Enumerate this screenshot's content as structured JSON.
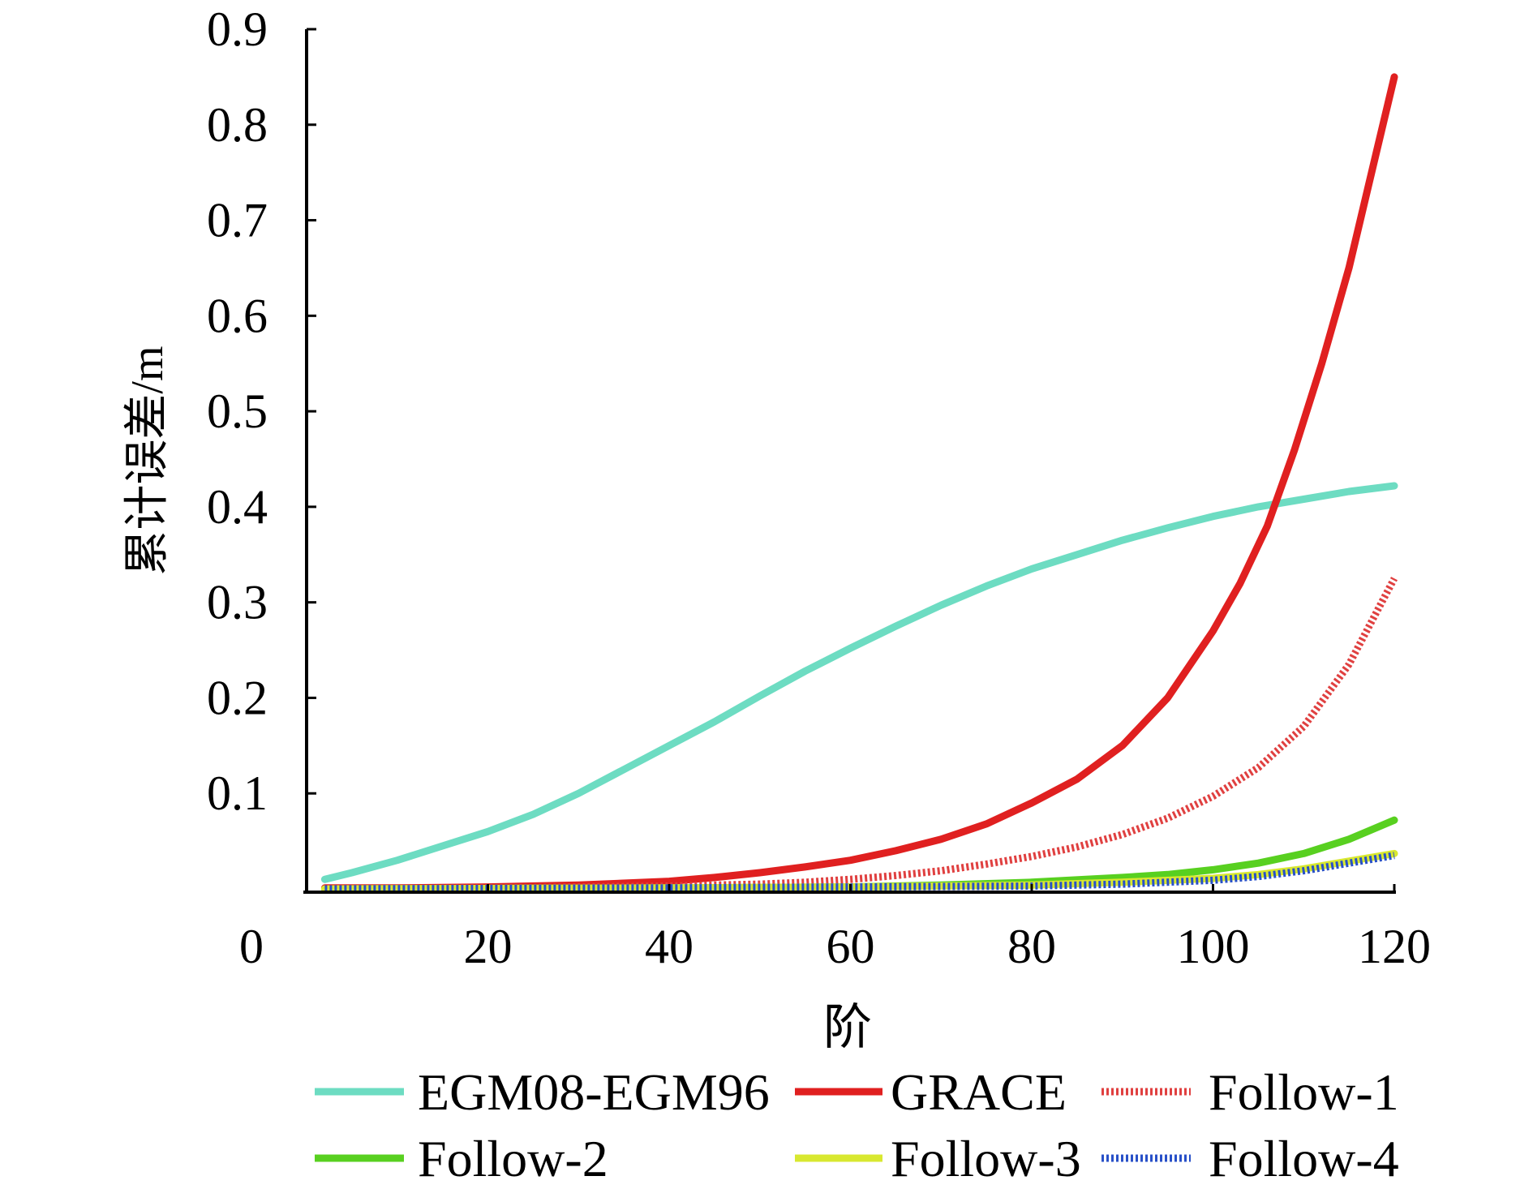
{
  "chart_data": {
    "type": "line",
    "title": "",
    "xlabel": "阶",
    "ylabel": "累计误差/m",
    "xlim": [
      0,
      120
    ],
    "ylim": [
      0,
      0.9
    ],
    "x_ticks": [
      "0",
      "20",
      "40",
      "60",
      "80",
      "100",
      "120"
    ],
    "y_ticks": [
      "0.1",
      "0.2",
      "0.3",
      "0.4",
      "0.5",
      "0.6",
      "0.7",
      "0.8",
      "0.9"
    ],
    "x_tick_values": [
      0,
      20,
      40,
      60,
      80,
      100,
      120
    ],
    "y_tick_values": [
      0.1,
      0.2,
      0.3,
      0.4,
      0.5,
      0.6,
      0.7,
      0.8,
      0.9
    ],
    "grid": false,
    "legend_position": "bottom",
    "series": [
      {
        "name": "EGM08-EGM96",
        "color": "#6ddcc2",
        "dash": "solid",
        "x": [
          2,
          5,
          10,
          15,
          20,
          25,
          30,
          35,
          40,
          45,
          50,
          55,
          60,
          65,
          70,
          75,
          80,
          85,
          90,
          95,
          100,
          105,
          110,
          115,
          120
        ],
        "y": [
          0.01,
          0.017,
          0.03,
          0.045,
          0.06,
          0.078,
          0.1,
          0.125,
          0.15,
          0.175,
          0.202,
          0.228,
          0.252,
          0.275,
          0.297,
          0.317,
          0.335,
          0.35,
          0.365,
          0.378,
          0.39,
          0.4,
          0.408,
          0.416,
          0.422
        ]
      },
      {
        "name": "GRACE",
        "color": "#e02020",
        "dash": "solid",
        "x": [
          2,
          10,
          20,
          30,
          40,
          45,
          50,
          55,
          60,
          65,
          70,
          75,
          80,
          85,
          90,
          95,
          100,
          103,
          106,
          109,
          112,
          115,
          118,
          120
        ],
        "y": [
          0.001,
          0.001,
          0.002,
          0.004,
          0.008,
          0.012,
          0.017,
          0.023,
          0.03,
          0.04,
          0.052,
          0.068,
          0.09,
          0.115,
          0.15,
          0.2,
          0.27,
          0.32,
          0.38,
          0.46,
          0.55,
          0.65,
          0.77,
          0.85
        ]
      },
      {
        "name": "Follow-1",
        "color": "#e04040",
        "dash": "dotted",
        "x": [
          2,
          20,
          40,
          50,
          55,
          60,
          65,
          70,
          75,
          80,
          85,
          90,
          95,
          100,
          105,
          110,
          115,
          120
        ],
        "y": [
          0,
          0.001,
          0.003,
          0.005,
          0.007,
          0.01,
          0.014,
          0.019,
          0.026,
          0.034,
          0.044,
          0.057,
          0.074,
          0.097,
          0.127,
          0.17,
          0.235,
          0.325
        ]
      },
      {
        "name": "Follow-2",
        "color": "#58d020",
        "dash": "solid",
        "x": [
          2,
          40,
          60,
          70,
          80,
          90,
          95,
          100,
          105,
          110,
          115,
          120
        ],
        "y": [
          0,
          0.001,
          0.002,
          0.004,
          0.007,
          0.012,
          0.015,
          0.02,
          0.027,
          0.037,
          0.052,
          0.072
        ]
      },
      {
        "name": "Follow-3",
        "color": "#d8e830",
        "dash": "solid",
        "x": [
          2,
          40,
          60,
          80,
          90,
          100,
          105,
          110,
          115,
          120
        ],
        "y": [
          0,
          0.001,
          0.002,
          0.004,
          0.007,
          0.011,
          0.015,
          0.021,
          0.029,
          0.037
        ]
      },
      {
        "name": "Follow-4",
        "color": "#2850c8",
        "dash": "dotted",
        "x": [
          2,
          40,
          60,
          80,
          90,
          100,
          105,
          110,
          115,
          120
        ],
        "y": [
          0,
          0.001,
          0.002,
          0.003,
          0.005,
          0.009,
          0.013,
          0.019,
          0.027,
          0.035
        ]
      }
    ]
  }
}
